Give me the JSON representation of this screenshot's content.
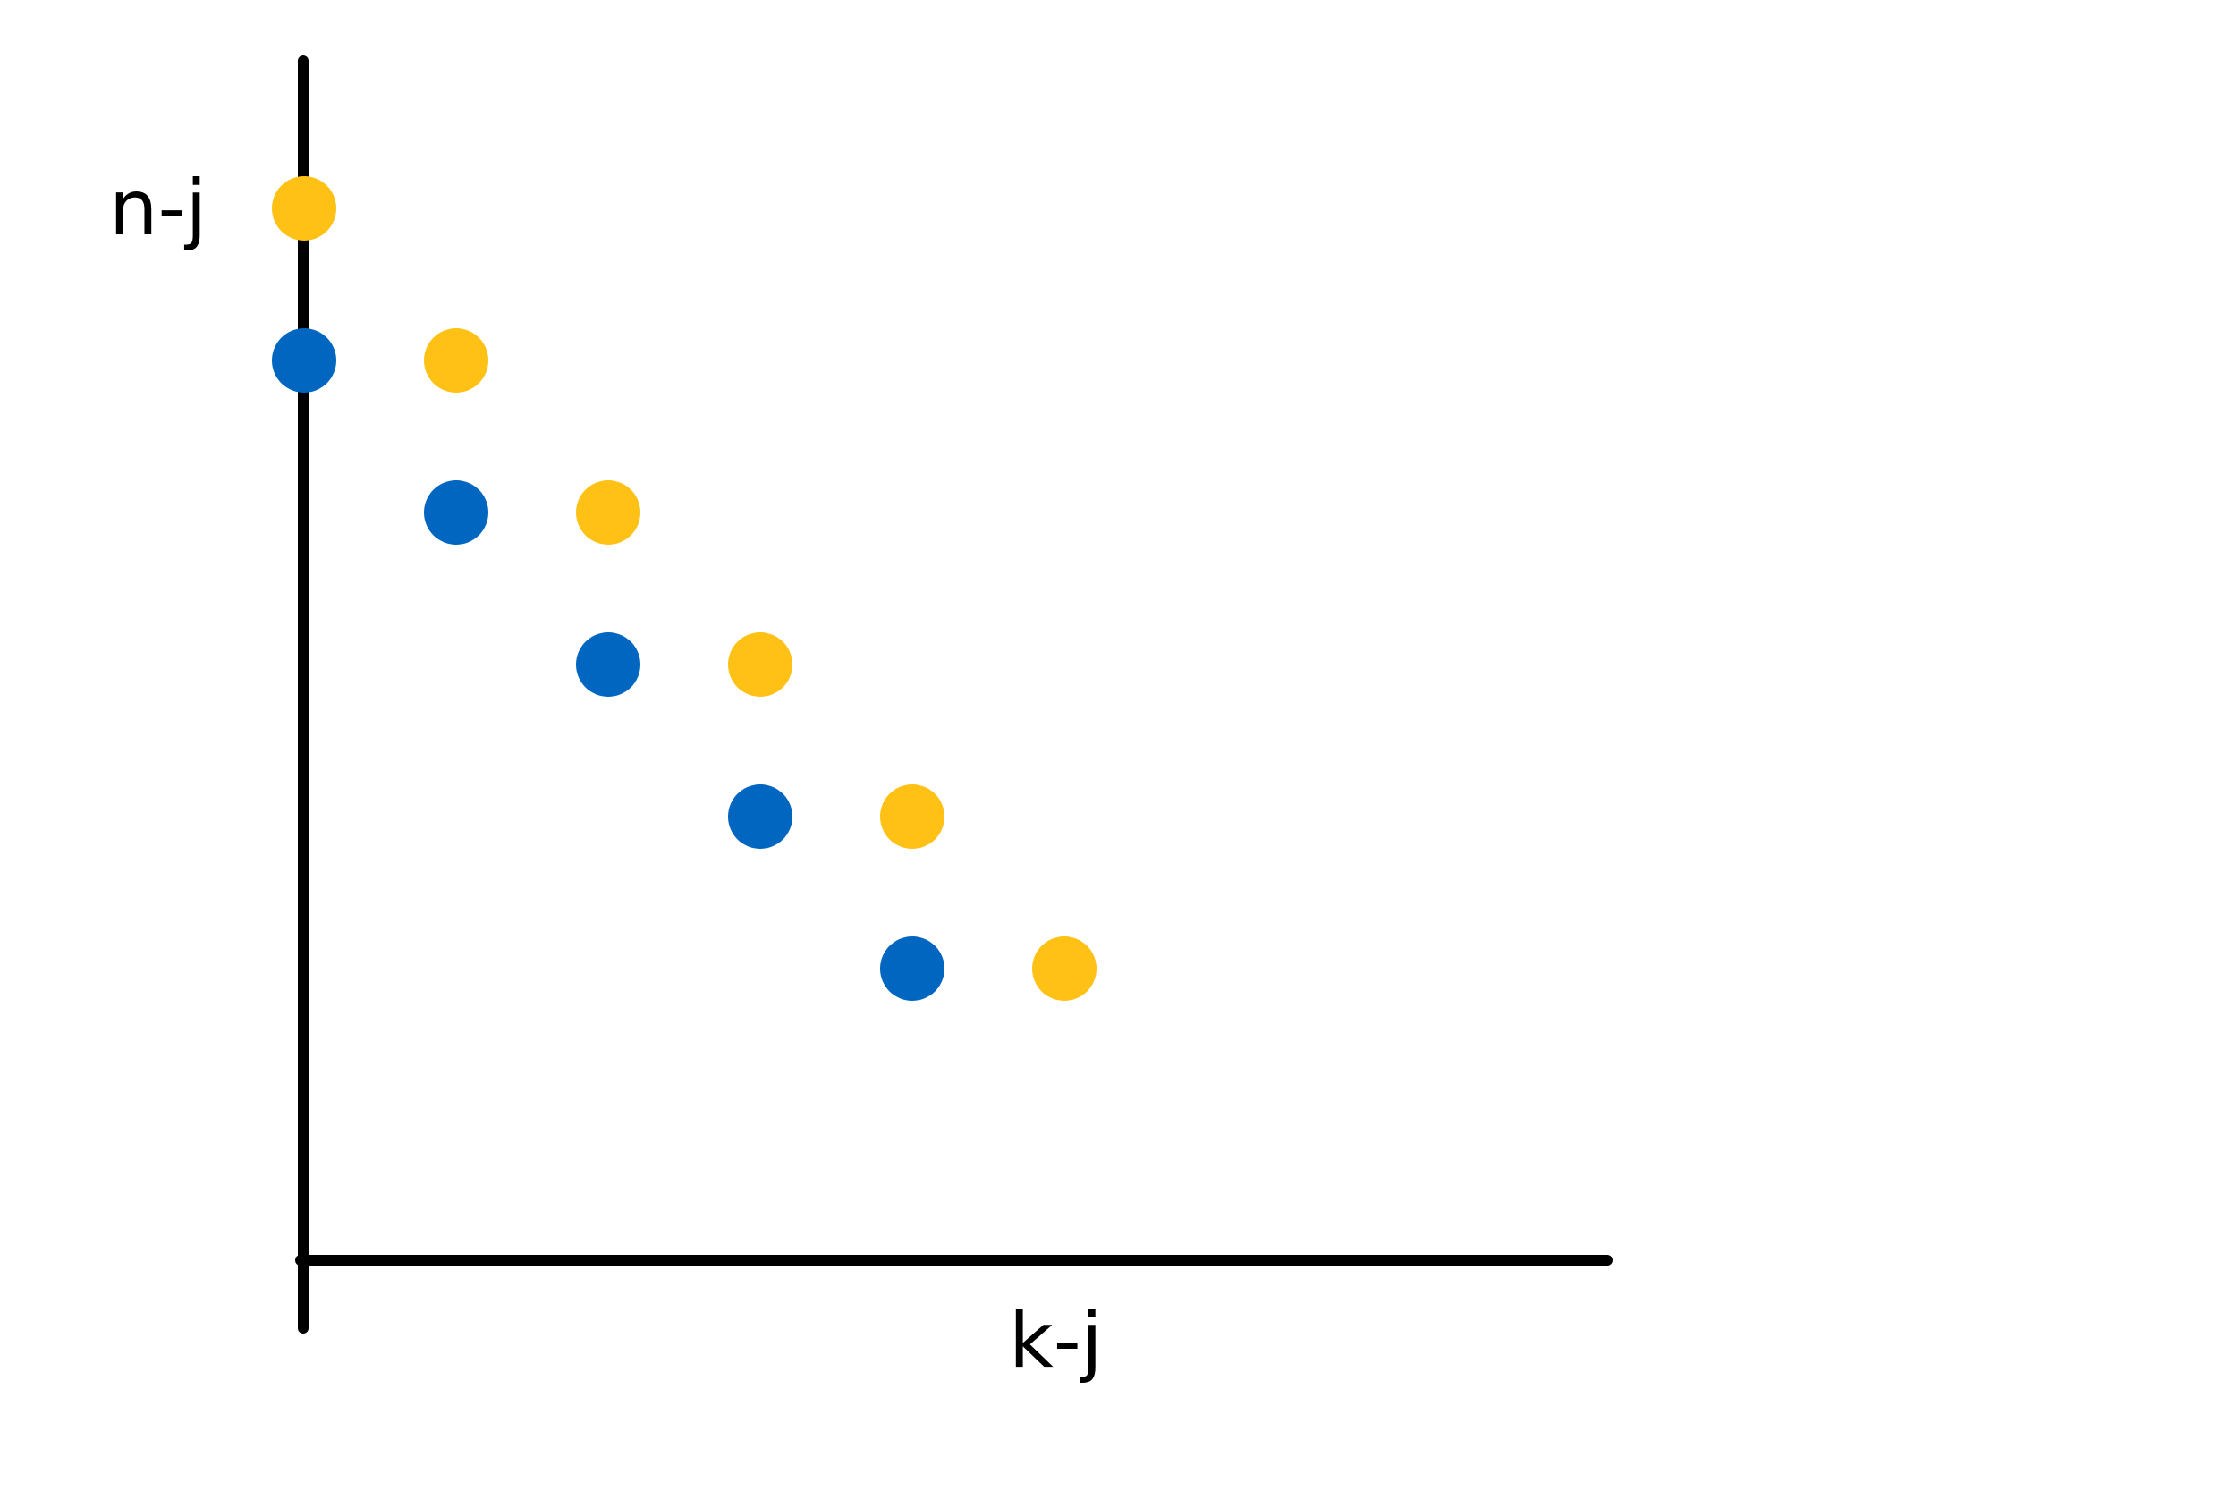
{
  "diagram": {
    "y_axis_label": "n-j",
    "x_axis_label": "k-j"
  },
  "colors": {
    "blue": "#0066C0",
    "yellow": "#FFC116",
    "axis": "#000000"
  },
  "chart_data": {
    "type": "scatter",
    "xlabel": "k-j",
    "ylabel": "n-j",
    "grid": false,
    "series": [
      {
        "color": "#0066C0",
        "points": [
          {
            "x": 0,
            "y": 6
          },
          {
            "x": 1,
            "y": 5
          },
          {
            "x": 2,
            "y": 4
          },
          {
            "x": 3,
            "y": 3
          },
          {
            "x": 4,
            "y": 2
          }
        ]
      },
      {
        "color": "#FFC116",
        "points": [
          {
            "x": 0,
            "y": 7
          },
          {
            "x": 1,
            "y": 6
          },
          {
            "x": 2,
            "y": 5
          },
          {
            "x": 3,
            "y": 4
          },
          {
            "x": 4,
            "y": 3
          },
          {
            "x": 5,
            "y": 2
          }
        ]
      }
    ]
  }
}
